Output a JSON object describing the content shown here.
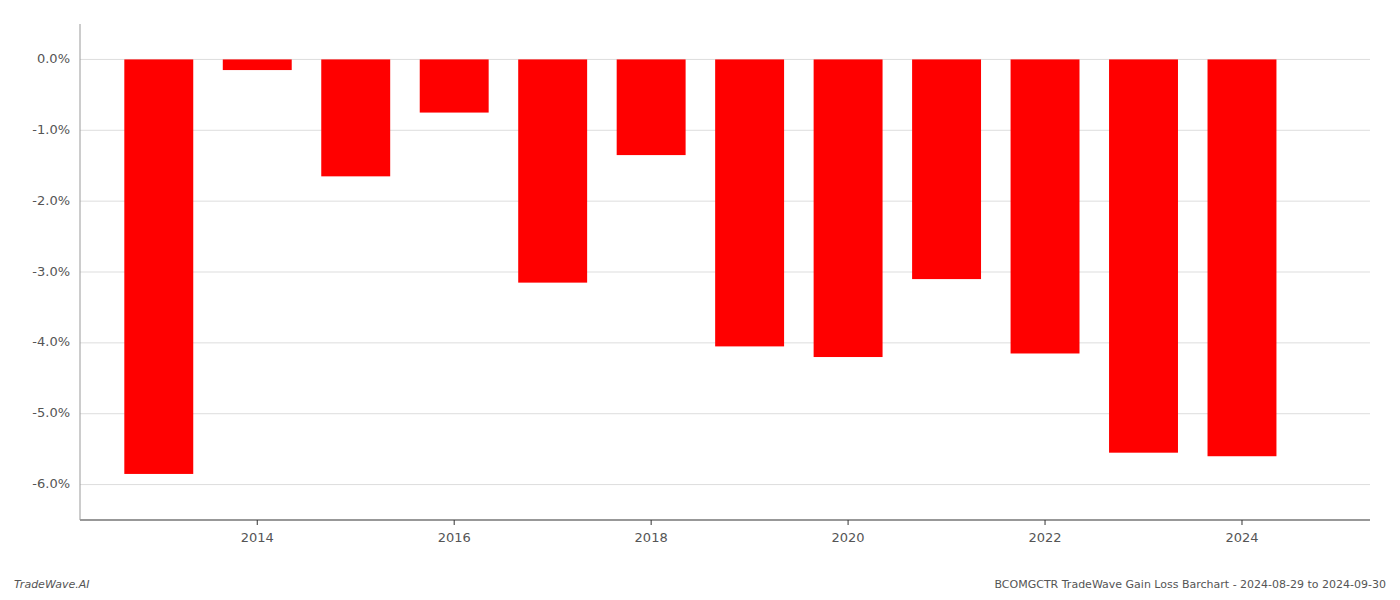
{
  "chart_data": {
    "type": "bar",
    "x": [
      2013,
      2014,
      2015,
      2016,
      2017,
      2018,
      2019,
      2020,
      2021,
      2022,
      2023,
      2024
    ],
    "values": [
      -5.85,
      -0.15,
      -1.65,
      -0.75,
      -3.15,
      -1.35,
      -4.05,
      -4.2,
      -3.1,
      -4.15,
      -5.55,
      -5.6
    ],
    "color": "#ff0000",
    "xlim": [
      2012.2,
      2025.3
    ],
    "xticks": [
      2014,
      2016,
      2018,
      2020,
      2022,
      2024
    ],
    "ylim": [
      -6.5,
      0.5
    ],
    "yticks": [
      {
        "value": 0.0,
        "label": "0.0%"
      },
      {
        "value": -1.0,
        "label": "-1.0%"
      },
      {
        "value": -2.0,
        "label": "-2.0%"
      },
      {
        "value": -3.0,
        "label": "-3.0%"
      },
      {
        "value": -4.0,
        "label": "-4.0%"
      },
      {
        "value": -5.0,
        "label": "-5.0%"
      },
      {
        "value": -6.0,
        "label": "-6.0%"
      }
    ],
    "grid": true,
    "annotations": [
      "TradeWave.AI",
      "BCOMGCTR TradeWave Gain Loss Barchart - 2024-08-29 to 2024-09-30"
    ]
  }
}
